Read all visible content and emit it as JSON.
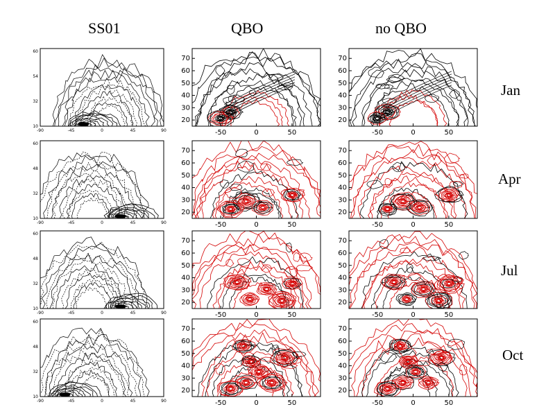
{
  "column_titles": [
    "SS01",
    "QBO",
    "no QBO"
  ],
  "row_labels": [
    "Jan",
    "Apr",
    "Jul",
    "Oct"
  ],
  "colors": {
    "positive_contour": "#000000",
    "negative_contour": "#d40000",
    "frame": "#000000"
  },
  "axis_ticks": {
    "model_y": [
      "20",
      "30",
      "40",
      "50",
      "60",
      "70"
    ],
    "model_x": [
      "-50",
      "0",
      "50"
    ],
    "ss01_x": [
      "-90",
      "-45",
      "0",
      "45",
      "90"
    ],
    "ss01_y_jan": [
      "10",
      "32",
      "54",
      "60"
    ],
    "ss01_y_other": [
      "10",
      "32",
      "48",
      "60"
    ]
  }
}
